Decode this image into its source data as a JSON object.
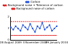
{
  "chart_data": {
    "type": "line",
    "categories": [
      "28 August 2009",
      null,
      null,
      null,
      null,
      null,
      null,
      null,
      null,
      null,
      "4 November 2009",
      null,
      null,
      null,
      null,
      null,
      null,
      null,
      null,
      "29 January 2010"
    ],
    "series": [
      {
        "name": "Carbon",
        "color": "#1f4fd8",
        "marker": "circle",
        "line_style": "solid",
        "values": [
          1.1,
          0.9,
          1.2,
          1.0,
          0.8,
          1.3,
          1.1,
          0.9,
          1.4,
          1.0,
          0.7,
          1.2,
          1.0,
          1.5,
          0.9,
          1.1,
          1.3,
          0.8,
          1.0,
          1.2
        ]
      },
      {
        "name": "Background noise + Tolerance of carbon",
        "color": "#e02020",
        "marker": "none",
        "line_style": "dashed",
        "values": [
          1.6,
          1.6,
          1.6,
          1.6,
          1.6,
          1.6,
          1.6,
          1.6,
          1.6,
          1.6,
          1.6,
          1.6,
          1.6,
          1.6,
          1.6,
          1.6,
          1.6,
          1.6,
          1.6,
          1.6
        ]
      },
      {
        "name": "Background noise of carbon",
        "color": "#e02020",
        "marker": "none",
        "line_style": "solid",
        "values": [
          0.4,
          0.4,
          0.4,
          0.4,
          0.4,
          0.4,
          0.4,
          0.4,
          0.4,
          0.4,
          0.4,
          0.4,
          0.4,
          0.4,
          0.4,
          0.4,
          0.4,
          0.4,
          0.4,
          0.4
        ]
      }
    ],
    "ylim": [
      0,
      2
    ],
    "yticks": [
      0,
      1,
      2
    ],
    "grid": false,
    "legend": "top"
  }
}
